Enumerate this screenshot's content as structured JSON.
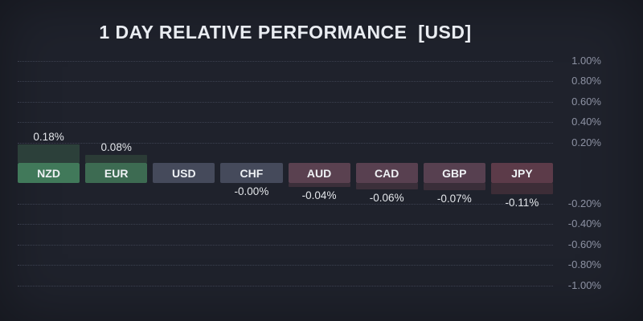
{
  "widget": {
    "title": "1 DAY RELATIVE PERFORMANCE  [USD]"
  },
  "chart_data": {
    "type": "bar",
    "title": "1 DAY RELATIVE PERFORMANCE  [USD]",
    "categories": [
      "NZD",
      "EUR",
      "USD",
      "CHF",
      "AUD",
      "CAD",
      "GBP",
      "JPY"
    ],
    "values": [
      0.18,
      0.08,
      0,
      -0.0,
      -0.04,
      -0.06,
      -0.07,
      -0.11
    ],
    "value_labels": [
      "0.18%",
      "0.08%",
      "",
      "-0.00%",
      "-0.04%",
      "-0.06%",
      "-0.07%",
      "-0.11%"
    ],
    "unit": "%",
    "xlabel": "",
    "ylabel": "",
    "ylim": [
      -1.0,
      1.0
    ],
    "y_ticks": [
      "1.00%",
      "0.80%",
      "0.60%",
      "0.40%",
      "0.20%",
      "-0.20%",
      "-0.40%",
      "-0.60%",
      "-0.80%",
      "-1.00%"
    ],
    "grid": "dotted-horizontal",
    "axis_side": "right",
    "legend": "none",
    "styles": [
      {
        "code": "NZD",
        "box": "#41795a",
        "bar": "#2c403a"
      },
      {
        "code": "EUR",
        "box": "#3d6b52",
        "bar": "#2b3b36"
      },
      {
        "code": "USD",
        "box": "#454a5b",
        "bar": "#454a5b"
      },
      {
        "code": "CHF",
        "box": "#454a5b",
        "bar": "#454a5b"
      },
      {
        "code": "AUD",
        "box": "#5a4150",
        "bar": "#3b2f3a"
      },
      {
        "code": "CAD",
        "box": "#584050",
        "bar": "#3b2f3a"
      },
      {
        "code": "GBP",
        "box": "#574050",
        "bar": "#3a2e39"
      },
      {
        "code": "JPY",
        "box": "#5c3b49",
        "bar": "#3d2d37"
      }
    ]
  },
  "colors": {
    "background": "#1f222c",
    "title_text": "#e9ecf1",
    "axis_text": "#8d92a3",
    "gridline": "#3c4150",
    "value_text": "#e3e6ea",
    "box_text": "#eef1f4"
  }
}
